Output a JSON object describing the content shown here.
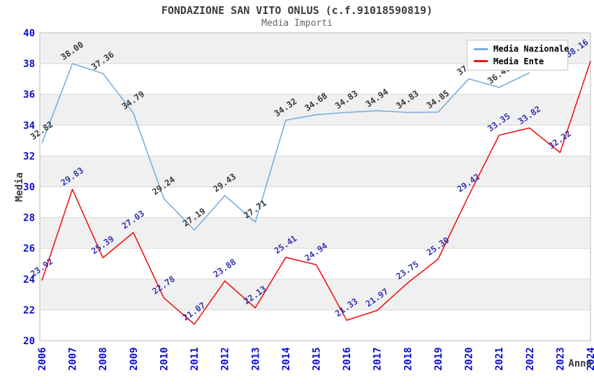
{
  "header": {
    "title": "FONDAZIONE SAN VITO ONLUS (c.f.91018590819)",
    "subtitle": "Media Importi"
  },
  "axes": {
    "y_title": "Media",
    "x_title": "Anno",
    "y_tick_labels": [
      "20",
      "22",
      "24",
      "26",
      "28",
      "30",
      "32",
      "34",
      "36",
      "38",
      "40"
    ],
    "x_tick_labels": [
      "2006",
      "2007",
      "2008",
      "2009",
      "2010",
      "2011",
      "2012",
      "2013",
      "2014",
      "2015",
      "2016",
      "2017",
      "2018",
      "2019",
      "2020",
      "2021",
      "2022",
      "2023",
      "2024"
    ],
    "tick_color": "#0d0dd0"
  },
  "legend": {
    "items": [
      {
        "label": "Media Nazionale",
        "color": "#79aede"
      },
      {
        "label": "Media Ente",
        "color": "#ee1414"
      }
    ]
  },
  "colors": {
    "band_gray": "#f0f0f0",
    "gridline": "#d8d8d8",
    "plot_border": "#bbbbbb",
    "national_line": "#79aede",
    "ente_line": "#ee1414",
    "national_label": "#3a3a3a",
    "ente_label": "#3737b2"
  },
  "chart_data": {
    "type": "line",
    "title": "FONDAZIONE SAN VITO ONLUS (c.f.91018590819)",
    "subtitle": "Media Importi",
    "xlabel": "Anno",
    "ylabel": "Media",
    "ylim": [
      20,
      40
    ],
    "y_step": 2,
    "grid": "horizontal-gridlines-with-alternating-bands",
    "legend_position": "top-right",
    "x": [
      "2006",
      "2007",
      "2008",
      "2009",
      "2010",
      "2011",
      "2012",
      "2013",
      "2014",
      "2015",
      "2016",
      "2017",
      "2018",
      "2019",
      "2020",
      "2021",
      "2022",
      "2023",
      "2024"
    ],
    "series": [
      {
        "name": "Media Nazionale",
        "color": "#79aede",
        "label_color": "#3a3a3a",
        "note": "labels for 2020 and 2022 partially hidden behind legend box",
        "values": [
          32.82,
          38.0,
          37.36,
          34.79,
          29.24,
          27.19,
          29.43,
          27.71,
          34.32,
          34.68,
          34.83,
          34.94,
          34.83,
          34.85,
          37.01,
          36.46,
          37.41
        ]
      },
      {
        "name": "Media Ente",
        "color": "#ee1414",
        "label_color": "#3737b2",
        "values": [
          23.92,
          29.83,
          25.39,
          27.03,
          22.78,
          21.07,
          23.88,
          22.13,
          25.41,
          24.94,
          21.33,
          21.97,
          23.75,
          25.3,
          29.42,
          33.35,
          33.82,
          32.22,
          38.16
        ]
      }
    ]
  }
}
